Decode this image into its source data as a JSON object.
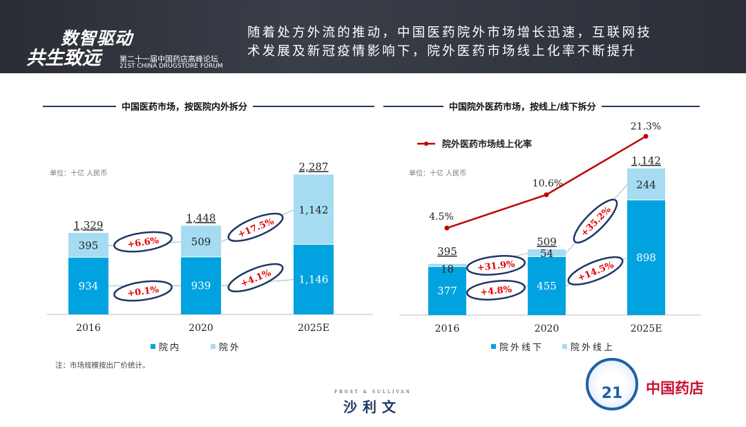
{
  "header": {
    "logo_line1": "数智驱动",
    "logo_line2": "共生致远",
    "forum_cn": "第二十一届中国药店高峰论坛",
    "forum_en": "21ST CHINA DRUGSTORE FORUM",
    "headline_1": "随着处方外流的推动，中国医药院外市场增长迅速，互联网技",
    "headline_2": "术发展及新冠疫情影响下，院外医药市场线上化率不断提升"
  },
  "footer": {
    "note": "注：市场规模按出厂价统计。",
    "brand": "沙利文",
    "brand_en": "FROST & SULLIVAN",
    "badge_number": "21",
    "logo_right": "中国药店"
  },
  "colors": {
    "dark": "#00a3e0",
    "light": "#a6dcf2",
    "line": "#c00000",
    "ellipse": "#1f3864",
    "growth": "#e00000"
  },
  "chart_data": [
    {
      "type": "bar",
      "title": "中国医药市场，按医院内外拆分",
      "unit": "单位：十亿 人民币",
      "categories": [
        "2016",
        "2020",
        "2025E"
      ],
      "series": [
        {
          "name": "院内",
          "values": [
            934,
            939,
            1146
          ]
        },
        {
          "name": "院外",
          "values": [
            395,
            509,
            1142
          ]
        }
      ],
      "totals": [
        "1,329",
        "1,448",
        "2,287"
      ],
      "labels_in": [
        "934",
        "939",
        "1,146"
      ],
      "labels_out": [
        "395",
        "509",
        "1,142"
      ],
      "growth": [
        {
          "label": "+6.6%",
          "series": "院外",
          "period": "2016-2020"
        },
        {
          "label": "+0.1%",
          "series": "院内",
          "period": "2016-2020"
        },
        {
          "label": "+17.5%",
          "series": "院外",
          "period": "2020-2025E"
        },
        {
          "label": "+4.1%",
          "series": "院内",
          "period": "2020-2025E"
        }
      ],
      "ylim": [
        0,
        2287
      ]
    },
    {
      "type": "bar",
      "title": "中国院外医药市场，按线上/线下拆分",
      "unit": "单位：十亿 人民币",
      "categories": [
        "2016",
        "2020",
        "2025E"
      ],
      "series": [
        {
          "name": "院外线下",
          "values": [
            377,
            455,
            898
          ]
        },
        {
          "name": "院外线上",
          "values": [
            18,
            54,
            244
          ]
        }
      ],
      "totals": [
        "395",
        "509",
        "1,142"
      ],
      "labels_off": [
        "377",
        "455",
        "898"
      ],
      "labels_on": [
        "18",
        "54",
        "244"
      ],
      "line": {
        "name": "院外医药市场线上化率",
        "values": [
          4.5,
          10.6,
          21.3
        ],
        "labels": [
          "4.5%",
          "10.6%",
          "21.3%"
        ]
      },
      "growth": [
        {
          "label": "+31.9%",
          "series": "院外线上",
          "period": "2016-2020"
        },
        {
          "label": "+4.8%",
          "series": "院外线下",
          "period": "2016-2020"
        },
        {
          "label": "+35.2%",
          "series": "院外线上",
          "period": "2020-2025E"
        },
        {
          "label": "+14.5%",
          "series": "院外线下",
          "period": "2020-2025E"
        }
      ],
      "ylim": [
        0,
        1142
      ]
    }
  ]
}
